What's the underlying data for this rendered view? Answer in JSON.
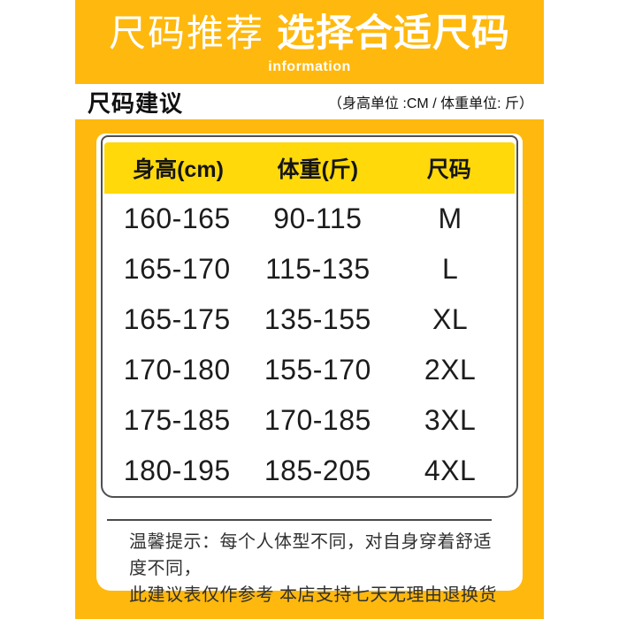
{
  "banner": {
    "title_light": "尺码推荐",
    "title_bold": "选择合适尺码",
    "subtitle": "information"
  },
  "header": {
    "title": "尺码建议",
    "units": "（身高单位 :CM / 体重单位: 斤）"
  },
  "size_table": {
    "columns": [
      "身高(cm)",
      "体重(斤)",
      "尺码"
    ],
    "rows": [
      [
        "160-165",
        "90-115",
        "M"
      ],
      [
        "165-170",
        "115-135",
        "L"
      ],
      [
        "165-175",
        "135-155",
        "XL"
      ],
      [
        "170-180",
        "155-170",
        "2XL"
      ],
      [
        "175-185",
        "170-185",
        "3XL"
      ],
      [
        "180-195",
        "185-205",
        "4XL"
      ]
    ]
  },
  "tips": {
    "line1": "温馨提示：每个人体型不同，对自身穿着舒适度不同，",
    "line2": "此建议表仅作参考 本店支持七天无理由退换货"
  },
  "colors": {
    "banner_bg": "#FFB80D",
    "table_header_bg": "#FFD90A",
    "text_dark": "#1C1C1C",
    "divider": "#4A4A4A"
  }
}
